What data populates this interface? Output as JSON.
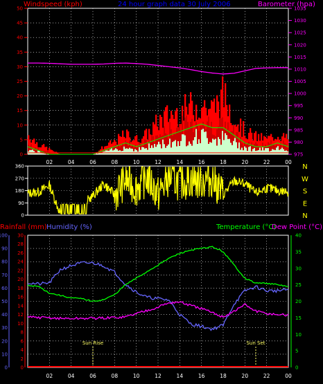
{
  "colors": {
    "wind": "#ff0000",
    "gust": "#ff0000",
    "mean": "#00ff00",
    "calm": "#ccffcc",
    "barometer": "#ff00ff",
    "title": "#0000ff",
    "direction": "#ffff00",
    "rain": "#ff0000",
    "humidity": "#6666ff",
    "temperature": "#00ff00",
    "dewpoint": "#ff00ff",
    "grid": "#ffffff",
    "marker": "#ffff66"
  },
  "chart_data": [
    {
      "type": "area",
      "name": "wind_barometer",
      "title": "24 hour graph data  30 July 2006",
      "ylabel_left": "Windspeed (kph)",
      "ylabel_right": "Barometer (hpa)",
      "x_ticks": [
        "02",
        "04",
        "06",
        "08",
        "10",
        "12",
        "14",
        "16",
        "18",
        "20",
        "22",
        "00"
      ],
      "y_left_ticks": [
        "50",
        "45",
        "40",
        "35",
        "30",
        "25",
        "20",
        "15",
        "10",
        "5",
        "0"
      ],
      "y_right_ticks": [
        "1035",
        "1030",
        "1025",
        "1020",
        "1015",
        "1010",
        "1005",
        "1000",
        "995",
        "990",
        "985",
        "980",
        "975"
      ],
      "ylim_left": [
        0,
        50
      ],
      "ylim_right": [
        975,
        1035
      ],
      "x": [
        0,
        1,
        2,
        3,
        4,
        5,
        6,
        7,
        8,
        9,
        10,
        11,
        12,
        13,
        14,
        15,
        16,
        17,
        18,
        19,
        20,
        21,
        22,
        23,
        24
      ],
      "series": [
        {
          "key": "gust",
          "values": [
            8,
            4,
            2,
            0,
            0,
            0,
            0,
            3,
            5,
            8,
            6,
            8,
            13,
            16,
            17,
            19,
            20,
            18,
            24,
            15,
            9,
            7,
            6,
            8,
            6
          ]
        },
        {
          "key": "wind",
          "values": [
            4,
            2,
            1,
            0,
            0,
            0,
            0,
            1,
            3,
            5,
            4,
            5,
            8,
            10,
            12,
            13,
            14,
            12,
            13,
            9,
            5,
            4,
            4,
            5,
            4
          ]
        },
        {
          "key": "mean",
          "values": [
            2,
            1,
            0,
            0,
            0,
            0,
            0,
            1,
            2,
            3,
            2,
            3,
            4,
            5,
            6,
            7,
            8,
            7,
            7,
            5,
            3,
            2,
            2,
            3,
            2
          ]
        },
        {
          "key": "barometer",
          "values": [
            1012.5,
            1012.5,
            1012.4,
            1012.2,
            1012.0,
            1012.0,
            1012.0,
            1012.1,
            1012.4,
            1012.5,
            1012.3,
            1012.0,
            1011.5,
            1011.0,
            1010.5,
            1009.8,
            1009.0,
            1008.4,
            1008.0,
            1008.3,
            1009.3,
            1010.3,
            1010.5,
            1010.6,
            1010.6
          ]
        }
      ]
    },
    {
      "type": "line",
      "name": "wind_direction",
      "y_left_ticks": [
        "360",
        "270",
        "180",
        "90",
        "0"
      ],
      "direction_labels": [
        "N",
        "W",
        "S",
        "E",
        "N"
      ],
      "ylim": [
        0,
        360
      ],
      "x": [
        0,
        1,
        2,
        3,
        4,
        5,
        6,
        7,
        8,
        9,
        10,
        11,
        12,
        13,
        14,
        15,
        16,
        17,
        18,
        19,
        20,
        21,
        22,
        23,
        24
      ],
      "values": [
        160,
        170,
        220,
        10,
        10,
        80,
        140,
        230,
        150,
        260,
        200,
        280,
        150,
        280,
        240,
        260,
        250,
        270,
        150,
        250,
        230,
        160,
        200,
        180,
        170
      ]
    },
    {
      "type": "line",
      "name": "temperature_humidity",
      "ylabel_rain": "Rainfall (mm)",
      "ylabel_humidity": "Humidity (%)",
      "ylabel_temperature": "Temperature (°C)",
      "ylabel_dewpoint": "Dew Point (°C)",
      "y_humidity_ticks": [
        "100",
        "90",
        "80",
        "70",
        "60",
        "50",
        "40",
        "30",
        "20",
        "10",
        "0"
      ],
      "y_rain_ticks": [
        "30",
        "28",
        "26",
        "24",
        "22",
        "20",
        "18",
        "16",
        "14",
        "12",
        "10",
        "8",
        "6",
        "4",
        "2",
        "0"
      ],
      "y_temp_ticks": [
        "40",
        "35",
        "30",
        "25",
        "20",
        "15",
        "10",
        "5",
        "0"
      ],
      "x_ticks": [
        "02",
        "04",
        "06",
        "08",
        "10",
        "12",
        "14",
        "16",
        "18",
        "20",
        "22",
        "00"
      ],
      "ylim_humidity": [
        0,
        100
      ],
      "ylim_temperature": [
        0,
        40
      ],
      "ylim_rain": [
        0,
        30
      ],
      "annotations": [
        "Sun Rise",
        "Sun Set"
      ],
      "sunrise_hour": 6,
      "sunset_hour": 21,
      "x": [
        0,
        1,
        2,
        3,
        4,
        5,
        6,
        7,
        8,
        9,
        10,
        11,
        12,
        13,
        14,
        15,
        16,
        17,
        18,
        19,
        20,
        21,
        22,
        23,
        24
      ],
      "series": [
        {
          "key": "humidity",
          "values": [
            64,
            63,
            64,
            74,
            77,
            79,
            79,
            77,
            72,
            63,
            57,
            53,
            52,
            51,
            40,
            33,
            31,
            29,
            32,
            48,
            58,
            61,
            58,
            58,
            59
          ]
        },
        {
          "key": "temperature",
          "values": [
            24.8,
            24.5,
            22.5,
            21.8,
            21.0,
            20.8,
            20.0,
            20.5,
            22,
            25,
            27,
            29,
            31,
            33,
            34.5,
            35.5,
            36,
            36.5,
            35,
            31,
            27,
            25.5,
            25.5,
            25,
            24.5
          ]
        },
        {
          "key": "dewpoint",
          "values": [
            15.2,
            15.1,
            15.0,
            14.8,
            14.8,
            14.8,
            14.9,
            14.9,
            15.1,
            15.3,
            16.3,
            17.3,
            18.3,
            19.5,
            19.8,
            18.7,
            17.8,
            16.5,
            15.3,
            17.0,
            19.0,
            17.0,
            16.3,
            16.0,
            15.8
          ]
        },
        {
          "key": "rain",
          "values": [
            0,
            0,
            0,
            0,
            0,
            0,
            0,
            0,
            0,
            0,
            0,
            0,
            0,
            0,
            0,
            0,
            0,
            0,
            0,
            0,
            0,
            0,
            0,
            0,
            0
          ]
        }
      ]
    }
  ]
}
